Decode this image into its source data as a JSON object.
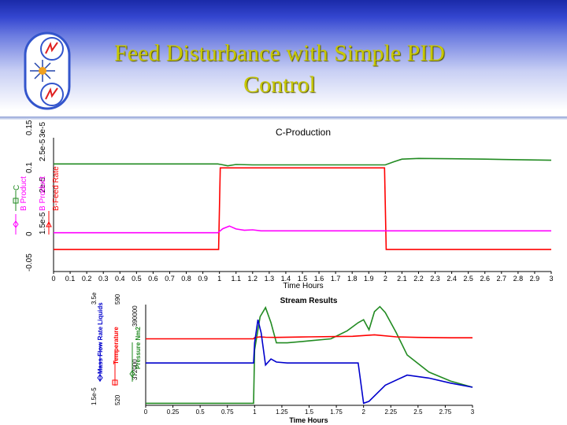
{
  "slide": {
    "title_line1": "Feed Disturbance with Simple PID",
    "title_line2": "Control",
    "title_color": "#c8c800"
  },
  "chart_data": [
    {
      "type": "line",
      "title": "C-Production",
      "xlabel": "Time Hours",
      "xlim": [
        0,
        3
      ],
      "x_ticks": [
        "0",
        "0.1",
        "0.2",
        "0.3",
        "0.4",
        "0.5",
        "0.6",
        "0.7",
        "0.8",
        "0.9",
        "1",
        "1.1",
        "1.2",
        "1.3",
        "1.4",
        "1.5",
        "1.6",
        "1.7",
        "1.8",
        "1.9",
        "2",
        "2.1",
        "2.2",
        "2.3",
        "2.4",
        "2.5",
        "2.6",
        "2.7",
        "2.8",
        "2.9",
        "3"
      ],
      "y_axes": [
        {
          "label": "B Product",
          "color": "#ff00ff",
          "ticks": [
            "1.5e-5",
            "2e-5",
            "2.5e-5",
            "3e-5"
          ]
        },
        {
          "label": "C",
          "color": "#228b22",
          "ticks": [
            "-0.05",
            "0",
            "0.1",
            "0.15"
          ]
        },
        {
          "label": "B-Feed Rate",
          "color": "#ff0000",
          "ticks": []
        }
      ],
      "normalized_range": [
        0,
        1
      ],
      "series": [
        {
          "name": "C",
          "color": "#228b22",
          "x": [
            0,
            0.99,
            1.01,
            1.05,
            1.1,
            1.2,
            1.3,
            2.0,
            2.05,
            2.1,
            2.2,
            2.4,
            2.6,
            2.8,
            3.0
          ],
          "y": [
            0.804,
            0.804,
            0.8,
            0.79,
            0.8,
            0.797,
            0.797,
            0.797,
            0.82,
            0.84,
            0.845,
            0.843,
            0.84,
            0.836,
            0.832
          ]
        },
        {
          "name": "B-Feed Rate",
          "color": "#ff0000",
          "x": [
            0,
            0.995,
            1.005,
            1.995,
            2.005,
            3.0
          ],
          "y": [
            0.165,
            0.165,
            0.775,
            0.775,
            0.165,
            0.165
          ]
        },
        {
          "name": "B Product",
          "color": "#ff00ff",
          "x": [
            0,
            0.99,
            1.02,
            1.06,
            1.1,
            1.15,
            1.2,
            1.25,
            2.0,
            3.0
          ],
          "y": [
            0.29,
            0.29,
            0.32,
            0.34,
            0.318,
            0.308,
            0.312,
            0.304,
            0.304,
            0.304
          ]
        }
      ]
    },
    {
      "type": "line",
      "title": "Stream Results",
      "xlabel": "Time Hours",
      "xlim": [
        0,
        3
      ],
      "x_ticks": [
        "0",
        "0.25",
        "0.5",
        "0.75",
        "1",
        "1.25",
        "1.5",
        "1.75",
        "2",
        "2.25",
        "2.5",
        "2.75",
        "3"
      ],
      "y_axes": [
        {
          "label": "Mass Flow Rate Liquids",
          "color": "#0000cc",
          "ticks": [
            "1.5e-5",
            "3.5e"
          ]
        },
        {
          "label": "Temperature",
          "color": "#ff0000",
          "ticks": [
            "520",
            "590"
          ]
        },
        {
          "label": "Pressure Nm2",
          "color": "#228b22",
          "ticks": [
            "372000",
            "390000"
          ]
        }
      ],
      "normalized_range": [
        0,
        1
      ],
      "series": [
        {
          "name": "Pressure Nm2",
          "color": "#228b22",
          "x": [
            0,
            0.99,
            1.0,
            1.05,
            1.1,
            1.15,
            1.2,
            1.3,
            1.5,
            1.7,
            1.85,
            1.95,
            2.0,
            2.05,
            2.1,
            2.15,
            2.2,
            2.3,
            2.4,
            2.6,
            2.8,
            3.0
          ],
          "y": [
            0.02,
            0.02,
            0.55,
            0.88,
            0.97,
            0.82,
            0.62,
            0.62,
            0.64,
            0.66,
            0.74,
            0.82,
            0.85,
            0.75,
            0.93,
            0.98,
            0.92,
            0.72,
            0.5,
            0.33,
            0.24,
            0.18
          ]
        },
        {
          "name": "Temperature",
          "color": "#ff0000",
          "x": [
            0,
            0.99,
            1.0,
            1.05,
            1.1,
            1.2,
            1.5,
            1.9,
            2.1,
            2.3,
            2.5,
            2.8,
            3.0
          ],
          "y": [
            0.66,
            0.66,
            0.672,
            0.68,
            0.676,
            0.674,
            0.68,
            0.685,
            0.7,
            0.68,
            0.674,
            0.67,
            0.67
          ]
        },
        {
          "name": "Mass Flow Rate Liquids",
          "color": "#0000cc",
          "x": [
            0,
            0.99,
            1.0,
            1.03,
            1.06,
            1.1,
            1.15,
            1.2,
            1.3,
            1.6,
            1.95,
            2.0,
            2.05,
            2.2,
            2.4,
            2.6,
            2.8,
            3.0
          ],
          "y": [
            0.42,
            0.42,
            0.62,
            0.85,
            0.72,
            0.4,
            0.46,
            0.43,
            0.42,
            0.42,
            0.42,
            0.02,
            0.04,
            0.2,
            0.3,
            0.27,
            0.22,
            0.18
          ]
        }
      ]
    }
  ]
}
